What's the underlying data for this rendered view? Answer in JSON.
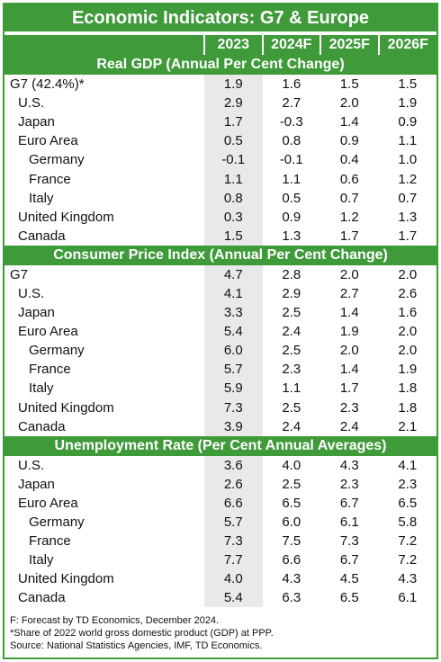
{
  "title": "Economic Indicators: G7 & Europe",
  "columns": [
    "2023",
    "2024F",
    "2025F",
    "2026F"
  ],
  "sections": [
    {
      "heading": "Real GDP (Annual Per Cent Change)",
      "rows": [
        {
          "label": "G7 (42.4%)*",
          "level": 0,
          "values": [
            "1.9",
            "1.6",
            "1.5",
            "1.5"
          ]
        },
        {
          "label": "U.S.",
          "level": 1,
          "values": [
            "2.9",
            "2.7",
            "2.0",
            "1.9"
          ]
        },
        {
          "label": "Japan",
          "level": 1,
          "values": [
            "1.7",
            "-0.3",
            "1.4",
            "0.9"
          ]
        },
        {
          "label": "Euro Area",
          "level": 1,
          "values": [
            "0.5",
            "0.8",
            "0.9",
            "1.1"
          ]
        },
        {
          "label": "Germany",
          "level": 2,
          "values": [
            "-0.1",
            "-0.1",
            "0.4",
            "1.0"
          ]
        },
        {
          "label": "France",
          "level": 2,
          "values": [
            "1.1",
            "1.1",
            "0.6",
            "1.2"
          ]
        },
        {
          "label": "Italy",
          "level": 2,
          "values": [
            "0.8",
            "0.5",
            "0.7",
            "0.7"
          ]
        },
        {
          "label": "United Kingdom",
          "level": 1,
          "values": [
            "0.3",
            "0.9",
            "1.2",
            "1.3"
          ]
        },
        {
          "label": "Canada",
          "level": 1,
          "values": [
            "1.5",
            "1.3",
            "1.7",
            "1.7"
          ]
        }
      ]
    },
    {
      "heading": "Consumer Price Index (Annual Per Cent Change)",
      "rows": [
        {
          "label": "G7",
          "level": 0,
          "values": [
            "4.7",
            "2.8",
            "2.0",
            "2.0"
          ]
        },
        {
          "label": "U.S.",
          "level": 1,
          "values": [
            "4.1",
            "2.9",
            "2.7",
            "2.6"
          ]
        },
        {
          "label": "Japan",
          "level": 1,
          "values": [
            "3.3",
            "2.5",
            "1.4",
            "1.6"
          ]
        },
        {
          "label": "Euro Area",
          "level": 1,
          "values": [
            "5.4",
            "2.4",
            "1.9",
            "2.0"
          ]
        },
        {
          "label": "Germany",
          "level": 2,
          "values": [
            "6.0",
            "2.5",
            "2.0",
            "2.0"
          ]
        },
        {
          "label": "France",
          "level": 2,
          "values": [
            "5.7",
            "2.3",
            "1.4",
            "1.9"
          ]
        },
        {
          "label": "Italy",
          "level": 2,
          "values": [
            "5.9",
            "1.1",
            "1.7",
            "1.8"
          ]
        },
        {
          "label": "United Kingdom",
          "level": 1,
          "values": [
            "7.3",
            "2.5",
            "2.3",
            "1.8"
          ]
        },
        {
          "label": "Canada",
          "level": 1,
          "values": [
            "3.9",
            "2.4",
            "2.4",
            "2.1"
          ]
        }
      ]
    },
    {
      "heading": "Unemployment Rate (Per Cent Annual Averages)",
      "rows": [
        {
          "label": "U.S.",
          "level": 1,
          "values": [
            "3.6",
            "4.0",
            "4.3",
            "4.1"
          ]
        },
        {
          "label": "Japan",
          "level": 1,
          "values": [
            "2.6",
            "2.5",
            "2.3",
            "2.3"
          ]
        },
        {
          "label": "Euro Area",
          "level": 1,
          "values": [
            "6.6",
            "6.5",
            "6.7",
            "6.5"
          ]
        },
        {
          "label": "Germany",
          "level": 2,
          "values": [
            "5.7",
            "6.0",
            "6.1",
            "5.8"
          ]
        },
        {
          "label": "France",
          "level": 2,
          "values": [
            "7.3",
            "7.5",
            "7.3",
            "7.2"
          ]
        },
        {
          "label": "Italy",
          "level": 2,
          "values": [
            "7.7",
            "6.6",
            "6.7",
            "7.2"
          ]
        },
        {
          "label": "United Kingdom",
          "level": 1,
          "values": [
            "4.0",
            "4.3",
            "4.5",
            "4.3"
          ]
        },
        {
          "label": "Canada",
          "level": 1,
          "values": [
            "5.4",
            "6.3",
            "6.5",
            "6.1"
          ]
        }
      ]
    }
  ],
  "footnotes": [
    "F: Forecast by TD Economics, December 2024.",
    "*Share of 2022 world gross domestic product (GDP) at PPP.",
    "Source: National Statistics Agencies, IMF, TD Economics."
  ],
  "colors": {
    "accent": "#3f9a3a",
    "highlight_column": "#e9e9e9"
  }
}
